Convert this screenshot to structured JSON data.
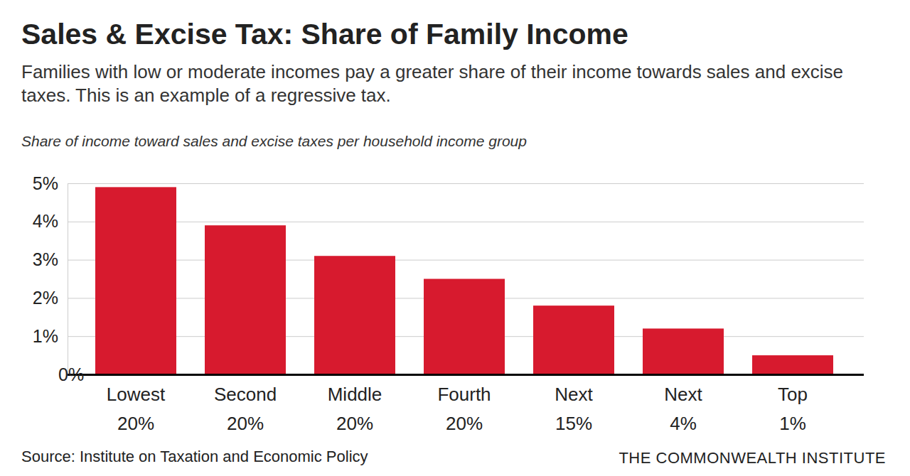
{
  "chart_data": {
    "type": "bar",
    "title": "Sales & Excise Tax: Share of Family Income",
    "subtitle": "Families with low or moderate incomes pay a greater share of their income towards sales and excise taxes. This is an example of a regressive tax.",
    "ylabel": "Share of income toward sales and excise taxes per household income group",
    "categories": [
      "Lowest 20%",
      "Second 20%",
      "Middle 20%",
      "Fourth 20%",
      "Next 15%",
      "Next 4%",
      "Top 1%"
    ],
    "values": [
      4.9,
      3.9,
      3.1,
      2.5,
      1.8,
      1.2,
      0.5
    ],
    "color": "#d71a2e",
    "ylim": [
      0,
      5
    ],
    "yticks": [
      {
        "value": 0,
        "label": "0%"
      },
      {
        "value": 1,
        "label": "1%"
      },
      {
        "value": 2,
        "label": "2%"
      },
      {
        "value": 3,
        "label": "3%"
      },
      {
        "value": 4,
        "label": "4%"
      },
      {
        "value": 5,
        "label": "5%"
      }
    ],
    "grid": true,
    "source": "Source: Institute on Taxation and Economic Policy",
    "credit": "THE COMMONWEALTH INSTITUTE"
  }
}
